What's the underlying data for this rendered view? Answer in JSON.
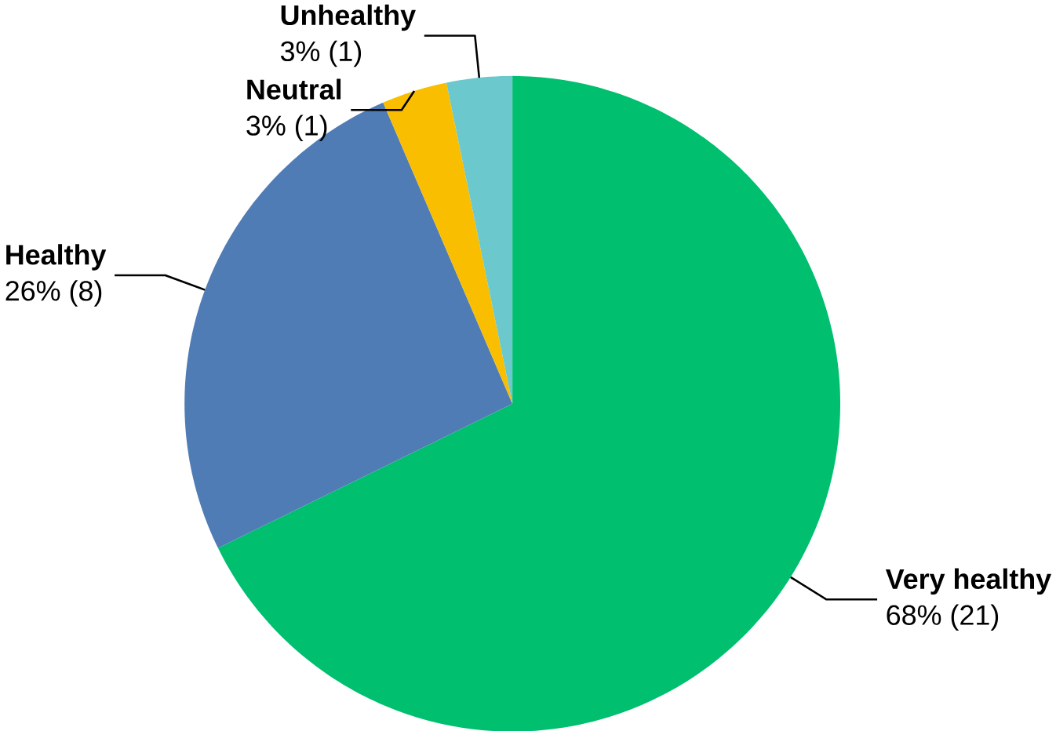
{
  "chart_data": {
    "type": "pie",
    "categories": [
      "Very healthy",
      "Healthy",
      "Neutral",
      "Unhealthy"
    ],
    "values": [
      21,
      8,
      1,
      1
    ],
    "colors": [
      "#00bf6f",
      "#507cb6",
      "#f9be00",
      "#6bc8cd"
    ],
    "value_labels": [
      "68% (21)",
      "26% (8)",
      "3% (1)",
      "3% (1)"
    ]
  }
}
